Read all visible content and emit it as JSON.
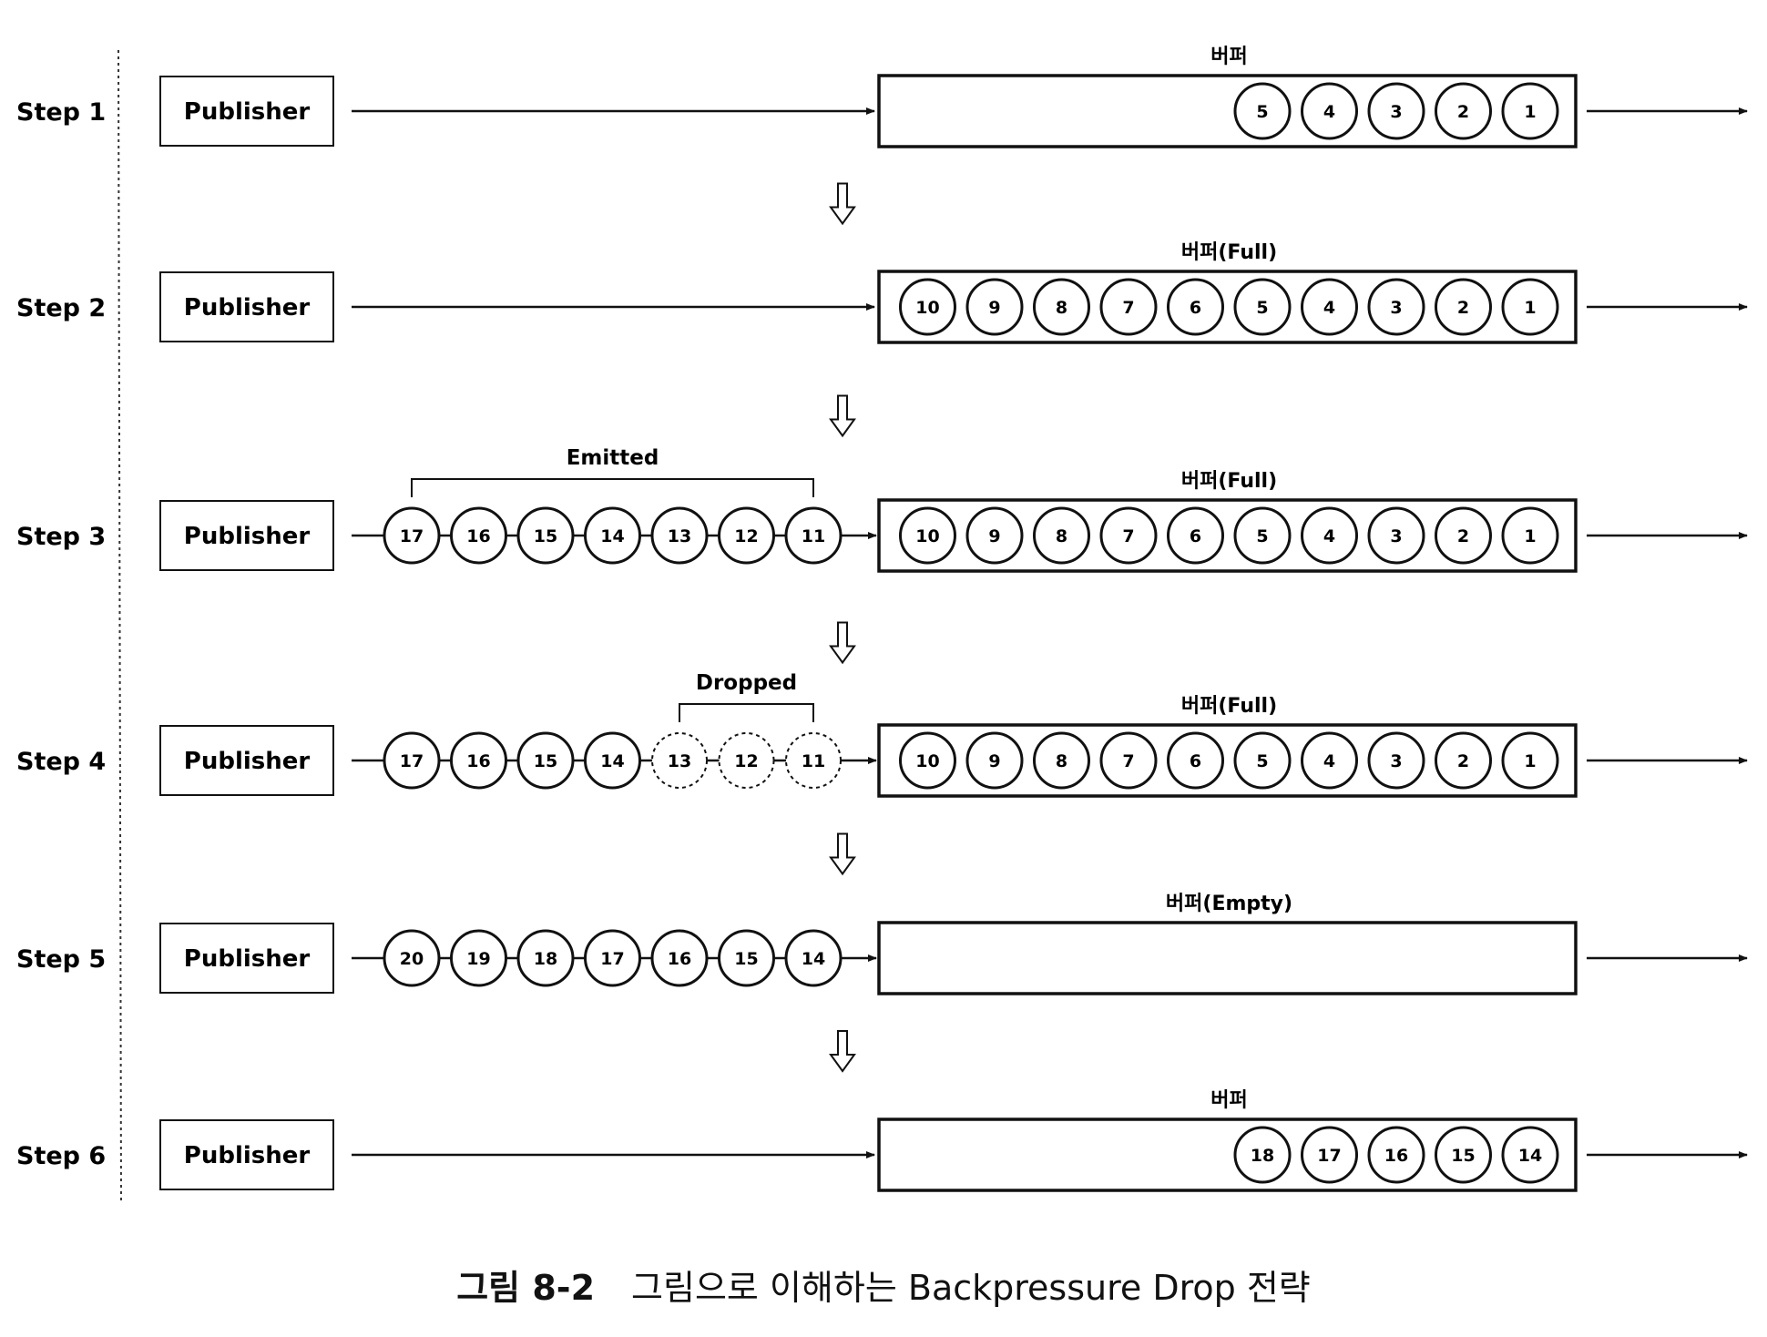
{
  "figure_caption": {
    "number": "그림 8-2",
    "text": "그림으로 이해하는 Backpressure Drop 전략"
  },
  "publisher_label": "Publisher",
  "steps": [
    {
      "label": "Step 1",
      "emitted": [],
      "dropped": [],
      "bracket": "",
      "buffer_label": "버퍼",
      "buffer": [
        "5",
        "4",
        "3",
        "2",
        "1"
      ]
    },
    {
      "label": "Step 2",
      "emitted": [],
      "dropped": [],
      "bracket": "",
      "buffer_label": "버퍼(Full)",
      "buffer": [
        "10",
        "9",
        "8",
        "7",
        "6",
        "5",
        "4",
        "3",
        "2",
        "1"
      ]
    },
    {
      "label": "Step 3",
      "emitted": [
        "17",
        "16",
        "15",
        "14",
        "13",
        "12",
        "11"
      ],
      "dropped": [],
      "bracket": "Emitted",
      "buffer_label": "버퍼(Full)",
      "buffer": [
        "10",
        "9",
        "8",
        "7",
        "6",
        "5",
        "4",
        "3",
        "2",
        "1"
      ]
    },
    {
      "label": "Step 4",
      "emitted": [
        "17",
        "16",
        "15",
        "14",
        "13",
        "12",
        "11"
      ],
      "dropped": [
        "13",
        "12",
        "11"
      ],
      "bracket": "Dropped",
      "buffer_label": "버퍼(Full)",
      "buffer": [
        "10",
        "9",
        "8",
        "7",
        "6",
        "5",
        "4",
        "3",
        "2",
        "1"
      ]
    },
    {
      "label": "Step 5",
      "emitted": [
        "20",
        "19",
        "18",
        "17",
        "16",
        "15",
        "14"
      ],
      "dropped": [],
      "bracket": "",
      "buffer_label": "버퍼(Empty)",
      "buffer": []
    },
    {
      "label": "Step 6",
      "emitted": [],
      "dropped": [],
      "bracket": "",
      "buffer_label": "버퍼",
      "buffer": [
        "18",
        "17",
        "16",
        "15",
        "14"
      ]
    }
  ]
}
